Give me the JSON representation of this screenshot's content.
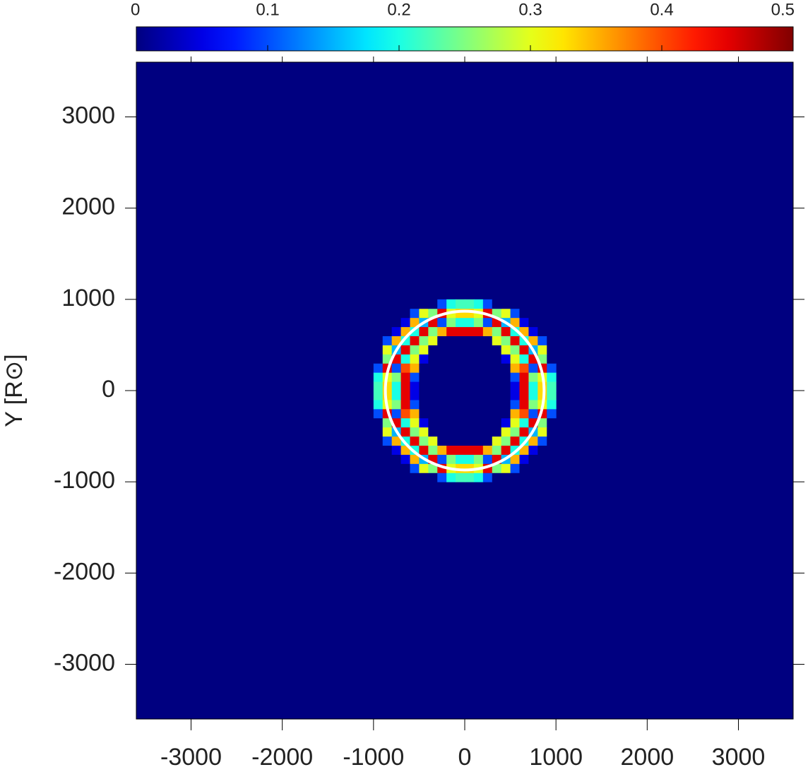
{
  "chart_data": {
    "type": "heatmap",
    "colormap": "jet",
    "clim": [
      0,
      0.5
    ],
    "cticks": [
      0,
      0.1,
      0.2,
      0.3,
      0.4,
      0.5
    ],
    "xlim": [
      -3600,
      3600
    ],
    "ylim": [
      -3600,
      3600
    ],
    "xticks": [
      -3000,
      -2000,
      -1000,
      0,
      1000,
      2000,
      3000
    ],
    "yticks": [
      -3000,
      -2000,
      -1000,
      0,
      1000,
      2000,
      3000
    ],
    "ylabel": "Y [R⊙]",
    "circle_radius": 870,
    "circle_color": "#ffffff",
    "xbins": [
      -1000,
      -900,
      -800,
      -700,
      -600,
      -500,
      -400,
      -300,
      -200,
      -100,
      0,
      100,
      200,
      300,
      400,
      500,
      600,
      700,
      800,
      900,
      1000
    ],
    "ybins": [
      -1000,
      -900,
      -800,
      -700,
      -600,
      -500,
      -400,
      -300,
      -200,
      -100,
      0,
      100,
      200,
      300,
      400,
      500,
      600,
      700,
      800,
      900,
      1000
    ],
    "z": [
      [
        0,
        0,
        0,
        0,
        0,
        0,
        0,
        0.1,
        0.2,
        0.22,
        0.22,
        0.2,
        0.1,
        0,
        0,
        0,
        0,
        0,
        0,
        0
      ],
      [
        0,
        0,
        0,
        0,
        0.1,
        0.3,
        0.25,
        0.45,
        0.3,
        0.33,
        0.33,
        0.3,
        0.45,
        0.25,
        0.3,
        0.1,
        0,
        0,
        0,
        0
      ],
      [
        0,
        0,
        0,
        0.05,
        0.35,
        0.15,
        0.45,
        0.1,
        0.25,
        0.2,
        0.2,
        0.25,
        0.1,
        0.45,
        0.15,
        0.35,
        0.05,
        0,
        0,
        0
      ],
      [
        0,
        0,
        0.05,
        0.35,
        0.2,
        0.45,
        0.25,
        0.35,
        0.45,
        0.45,
        0.45,
        0.45,
        0.35,
        0.25,
        0.45,
        0.2,
        0.35,
        0.05,
        0,
        0
      ],
      [
        0,
        0.1,
        0.35,
        0.2,
        0.45,
        0.25,
        0.3,
        0,
        0,
        0,
        0,
        0,
        0,
        0.3,
        0.25,
        0.45,
        0.2,
        0.35,
        0.1,
        0
      ],
      [
        0,
        0.3,
        0.15,
        0.45,
        0.25,
        0.3,
        0,
        0,
        0,
        0,
        0,
        0,
        0,
        0,
        0.3,
        0.25,
        0.45,
        0.15,
        0.3,
        0
      ],
      [
        0,
        0.25,
        0.45,
        0.2,
        0.3,
        0.05,
        0,
        0,
        0,
        0,
        0,
        0,
        0,
        0,
        0.05,
        0.3,
        0.2,
        0.45,
        0.25,
        0
      ],
      [
        0.1,
        0.45,
        0.1,
        0.4,
        0.35,
        0,
        0,
        0,
        0,
        0,
        0,
        0,
        0,
        0,
        0,
        0.35,
        0.4,
        0.1,
        0.45,
        0.1
      ],
      [
        0.2,
        0.3,
        0.25,
        0.45,
        0.1,
        0,
        0,
        0,
        0,
        0,
        0,
        0,
        0,
        0,
        0,
        0.1,
        0.45,
        0.25,
        0.3,
        0.2
      ],
      [
        0.22,
        0.33,
        0.2,
        0.45,
        0.05,
        0,
        0,
        0,
        0,
        0,
        0,
        0,
        0,
        0,
        0,
        0.05,
        0.45,
        0.2,
        0.33,
        0.22
      ],
      [
        0.22,
        0.33,
        0.2,
        0.45,
        0.05,
        0,
        0,
        0,
        0,
        0,
        0,
        0,
        0,
        0,
        0,
        0.05,
        0.45,
        0.2,
        0.33,
        0.22
      ],
      [
        0.2,
        0.3,
        0.25,
        0.45,
        0.1,
        0,
        0,
        0,
        0,
        0,
        0,
        0,
        0,
        0,
        0,
        0.1,
        0.45,
        0.25,
        0.3,
        0.2
      ],
      [
        0.1,
        0.45,
        0.1,
        0.4,
        0.35,
        0,
        0,
        0,
        0,
        0,
        0,
        0,
        0,
        0,
        0,
        0.35,
        0.4,
        0.1,
        0.45,
        0.1
      ],
      [
        0,
        0.25,
        0.45,
        0.2,
        0.3,
        0.05,
        0,
        0,
        0,
        0,
        0,
        0,
        0,
        0,
        0.05,
        0.3,
        0.2,
        0.45,
        0.25,
        0
      ],
      [
        0,
        0.3,
        0.15,
        0.45,
        0.25,
        0.3,
        0,
        0,
        0,
        0,
        0,
        0,
        0,
        0,
        0.3,
        0.25,
        0.45,
        0.15,
        0.3,
        0
      ],
      [
        0,
        0.1,
        0.35,
        0.2,
        0.45,
        0.25,
        0.3,
        0,
        0,
        0,
        0,
        0,
        0,
        0.3,
        0.25,
        0.45,
        0.2,
        0.35,
        0.1,
        0
      ],
      [
        0,
        0,
        0.05,
        0.35,
        0.2,
        0.45,
        0.25,
        0.35,
        0.45,
        0.45,
        0.45,
        0.45,
        0.35,
        0.25,
        0.45,
        0.2,
        0.35,
        0.05,
        0,
        0
      ],
      [
        0,
        0,
        0,
        0.05,
        0.35,
        0.15,
        0.45,
        0.1,
        0.25,
        0.2,
        0.2,
        0.25,
        0.1,
        0.45,
        0.15,
        0.35,
        0.05,
        0,
        0,
        0
      ],
      [
        0,
        0,
        0,
        0,
        0.1,
        0.3,
        0.25,
        0.45,
        0.3,
        0.33,
        0.33,
        0.3,
        0.45,
        0.25,
        0.3,
        0.1,
        0,
        0,
        0,
        0
      ],
      [
        0,
        0,
        0,
        0,
        0,
        0,
        0,
        0.1,
        0.2,
        0.22,
        0.22,
        0.2,
        0.1,
        0,
        0,
        0,
        0,
        0,
        0,
        0
      ]
    ]
  }
}
